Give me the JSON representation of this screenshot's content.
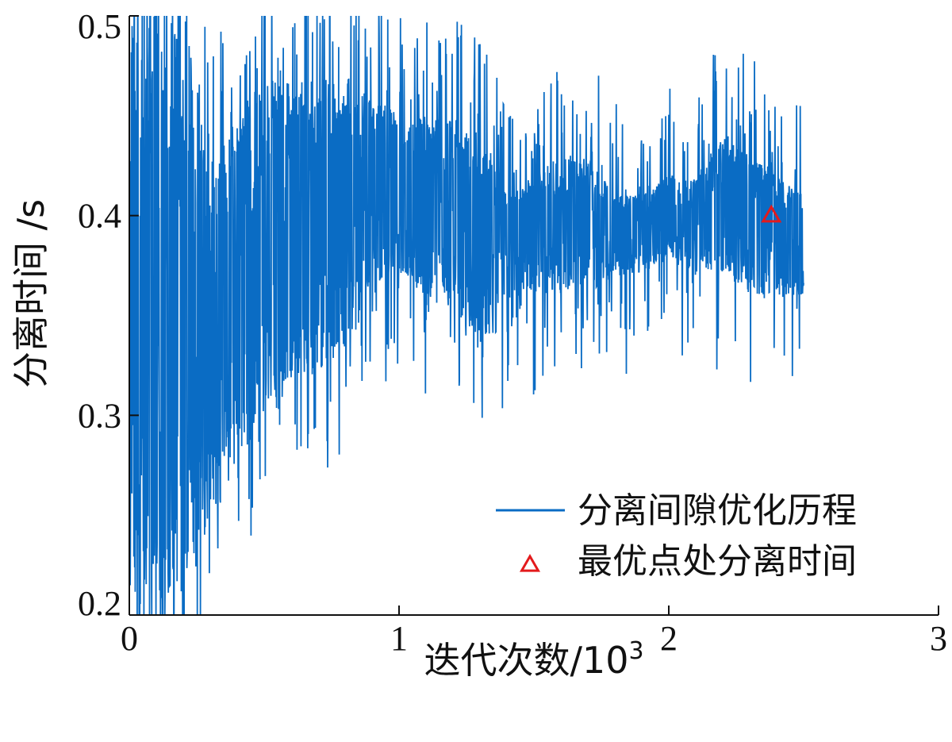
{
  "chart_data": {
    "type": "line",
    "title": "",
    "xlabel": "迭代次数/10",
    "xlabel_superscript": "3",
    "ylabel": "分离时间 /s",
    "xlim": [
      0,
      3
    ],
    "ylim": [
      0.2,
      0.5
    ],
    "xticks": [
      0,
      1,
      2,
      3
    ],
    "xtick_labels": [
      "0",
      "1",
      "2",
      "3"
    ],
    "yticks": [
      0.2,
      0.3,
      0.4,
      0.5
    ],
    "ytick_labels": [
      "0.2",
      "0.3",
      "0.4",
      "0.5"
    ],
    "grid": false,
    "legend": {
      "position": "lower-right",
      "entries": [
        {
          "label": "分离间隙优化历程",
          "marker": "line"
        },
        {
          "label": "最优点处分离时间",
          "marker": "triangle"
        }
      ]
    },
    "series": [
      {
        "name": "分离间隙优化历程",
        "color": "#0a6cc4",
        "x_range": [
          0,
          2.5
        ],
        "envelope_x": [
          0,
          0.05,
          0.1,
          0.2,
          0.3,
          0.4,
          0.5,
          0.6,
          0.7,
          0.8,
          0.9,
          1.0,
          1.1,
          1.2,
          1.3,
          1.4,
          1.5,
          1.6,
          1.7,
          1.8,
          1.9,
          2.0,
          2.1,
          2.2,
          2.3,
          2.4,
          2.5
        ],
        "envelope_low": [
          0.21,
          0.21,
          0.21,
          0.21,
          0.25,
          0.27,
          0.3,
          0.32,
          0.32,
          0.33,
          0.36,
          0.37,
          0.36,
          0.35,
          0.34,
          0.34,
          0.36,
          0.36,
          0.36,
          0.37,
          0.37,
          0.38,
          0.37,
          0.37,
          0.36,
          0.36,
          0.36
        ],
        "envelope_high": [
          0.5,
          0.5,
          0.5,
          0.49,
          0.44,
          0.45,
          0.46,
          0.47,
          0.47,
          0.47,
          0.46,
          0.45,
          0.45,
          0.45,
          0.44,
          0.41,
          0.42,
          0.43,
          0.43,
          0.41,
          0.41,
          0.42,
          0.42,
          0.44,
          0.43,
          0.42,
          0.41
        ]
      }
    ],
    "optimum_point": {
      "name": "最优点处分离时间",
      "x": 2.38,
      "y": 0.4,
      "color": "#e31a1c",
      "marker": "triangle"
    }
  }
}
